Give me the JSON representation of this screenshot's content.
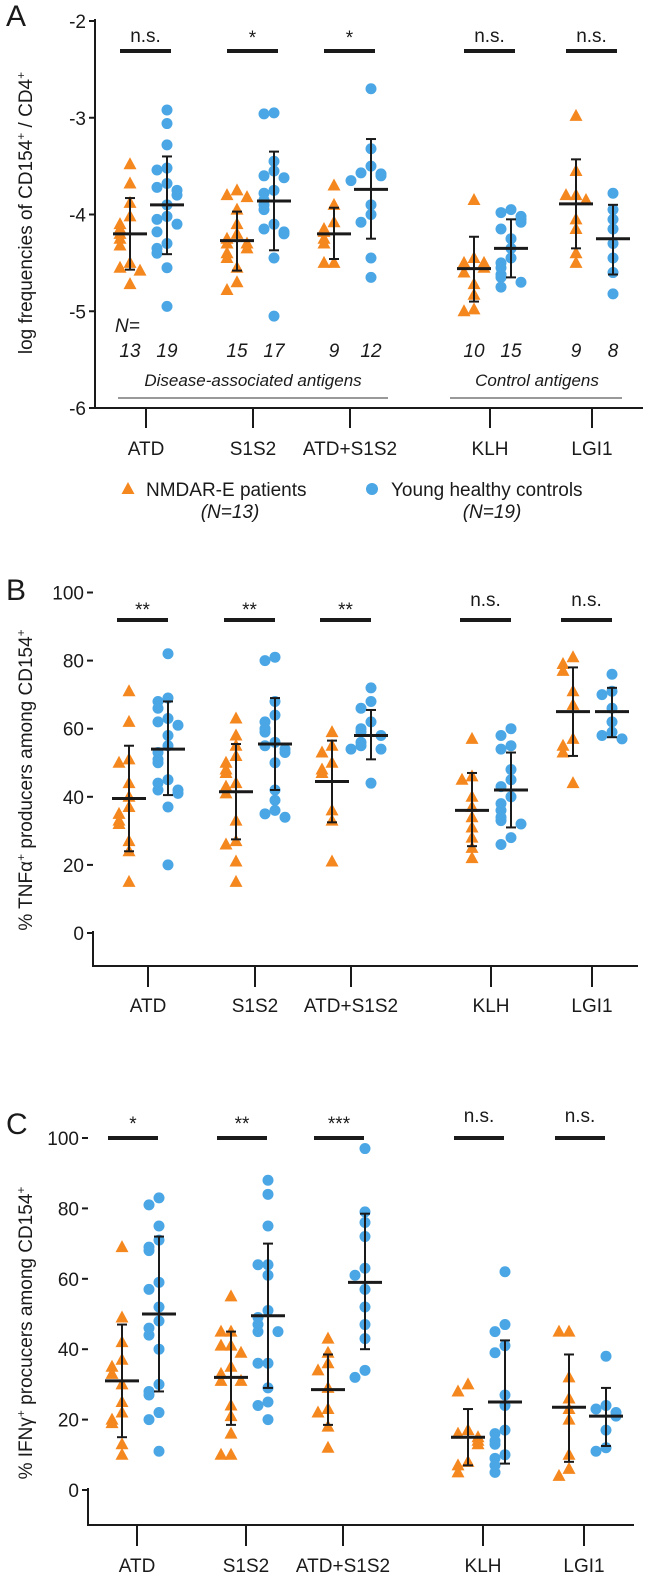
{
  "colors": {
    "patients": "#f5871f",
    "controls": "#4aa6e4",
    "axis": "#1a1a1a"
  },
  "legend": {
    "patients_label": "NMDAR-E patients",
    "patients_n": "(N=13)",
    "controls_label": "Young healthy controls",
    "controls_n": "(N=19)"
  },
  "chart_data": [
    {
      "type": "scatter",
      "panel": "A",
      "ylabel_parts": [
        "log frequencies of CD154",
        "+",
        " / CD4",
        "+"
      ],
      "ylim": [
        -6,
        -2
      ],
      "yticks": [
        -2,
        -3,
        -4,
        -5,
        -6
      ],
      "ytick_labels": [
        "-2",
        "-3",
        "-4",
        "-5",
        "-6"
      ],
      "categories": [
        "ATD",
        "S1S2",
        "ATD+S1S2",
        "KLH",
        "LGI1"
      ],
      "significance": [
        "n.s.",
        "*",
        "*",
        "n.s.",
        "n.s."
      ],
      "n_prefix": "N=",
      "n_counts": [
        [
          "13",
          "19"
        ],
        [
          "15",
          "17"
        ],
        [
          "9",
          "12"
        ],
        [
          "10",
          "15"
        ],
        [
          "9",
          "8"
        ]
      ],
      "group_labels": [
        "Disease-associated antigens",
        "Control antigens"
      ],
      "series": [
        {
          "name": "NMDAR-E patients",
          "values": [
            [
              -3.48,
              -3.68,
              -3.88,
              -4.02,
              -4.1,
              -4.15,
              -4.2,
              -4.25,
              -4.32,
              -4.5,
              -4.55,
              -4.58,
              -4.72
            ],
            [
              -3.75,
              -3.8,
              -3.82,
              -3.95,
              -4.1,
              -4.2,
              -4.25,
              -4.3,
              -4.3,
              -4.35,
              -4.4,
              -4.45,
              -4.55,
              -4.7,
              -4.78
            ],
            [
              -3.7,
              -3.9,
              -4.08,
              -4.15,
              -4.18,
              -4.25,
              -4.3,
              -4.5,
              -4.5
            ],
            [
              -3.85,
              -4.45,
              -4.5,
              -4.5,
              -4.55,
              -4.6,
              -4.72,
              -4.83,
              -4.98,
              -5.0
            ],
            [
              -2.98,
              -3.55,
              -3.8,
              -3.8,
              -3.85,
              -4.05,
              -4.15,
              -4.4,
              -4.5
            ]
          ],
          "means": [
            -4.2,
            -4.27,
            -4.2,
            -4.56,
            -3.89
          ],
          "err_low": [
            -4.57,
            -4.58,
            -4.46,
            -4.9,
            -4.35
          ],
          "err_high": [
            -3.83,
            -3.97,
            -3.93,
            -4.23,
            -3.43
          ]
        },
        {
          "name": "Young healthy controls",
          "values": [
            [
              -2.92,
              -3.06,
              -3.28,
              -3.52,
              -3.54,
              -3.68,
              -3.72,
              -3.75,
              -3.8,
              -3.9,
              -4.02,
              -4.05,
              -4.1,
              -4.18,
              -4.3,
              -4.35,
              -4.4,
              -4.55,
              -4.95
            ],
            [
              -2.95,
              -2.96,
              -3.45,
              -3.55,
              -3.6,
              -3.62,
              -3.75,
              -3.78,
              -3.85,
              -3.9,
              -3.95,
              -4.1,
              -4.15,
              -4.18,
              -4.2,
              -4.45,
              -5.05
            ],
            [
              -2.7,
              -3.32,
              -3.5,
              -3.57,
              -3.58,
              -3.6,
              -3.65,
              -3.9,
              -4.0,
              -4.08,
              -4.45,
              -4.65
            ],
            [
              -3.95,
              -3.98,
              -4.02,
              -4.05,
              -4.08,
              -4.15,
              -4.25,
              -4.35,
              -4.45,
              -4.5,
              -4.55,
              -4.62,
              -4.65,
              -4.7,
              -4.75
            ],
            [
              -3.78,
              -3.95,
              -4.05,
              -4.15,
              -4.3,
              -4.45,
              -4.6,
              -4.82
            ]
          ],
          "means": [
            -3.9,
            -3.86,
            -3.74,
            -4.35,
            -4.25
          ],
          "err_low": [
            -4.41,
            -4.37,
            -4.25,
            -4.65,
            -4.62
          ],
          "err_high": [
            -3.4,
            -3.35,
            -3.22,
            -4.05,
            -3.9
          ]
        }
      ]
    },
    {
      "type": "scatter",
      "panel": "B",
      "ylabel_parts": [
        "% TNFα",
        "+",
        " producers among CD154",
        "+"
      ],
      "ylim": [
        -10,
        100
      ],
      "yticks": [
        0,
        20,
        40,
        60,
        80,
        100
      ],
      "ytick_labels": [
        "0",
        "20",
        "40",
        "60",
        "80",
        "100"
      ],
      "categories": [
        "ATD",
        "S1S2",
        "ATD+S1S2",
        "KLH",
        "LGI1"
      ],
      "significance": [
        "**",
        "**",
        "**",
        "n.s.",
        "n.s."
      ],
      "series": [
        {
          "name": "NMDAR-E patients",
          "values": [
            [
              71,
              62,
              51,
              50,
              44,
              40,
              37,
              35,
              33,
              32,
              27,
              24,
              15
            ],
            [
              63,
              58,
              55,
              52,
              50,
              48,
              47,
              44,
              43,
              41,
              33,
              27,
              26,
              21,
              15
            ],
            [
              59,
              55,
              53,
              50,
              48,
              47,
              36,
              33,
              21
            ],
            [
              57,
              46,
              45,
              40,
              37,
              34,
              31,
              28,
              25,
              22
            ],
            [
              81,
              79,
              77,
              71,
              67,
              57,
              55,
              53,
              44
            ]
          ],
          "means": [
            39.5,
            41.5,
            44.5,
            36,
            65
          ],
          "err_low": [
            24,
            27.5,
            32.5,
            25.5,
            52
          ],
          "err_high": [
            55,
            55.5,
            56.5,
            47,
            78
          ]
        },
        {
          "name": "Young healthy controls",
          "values": [
            [
              82,
              69,
              68,
              66,
              63,
              62,
              61,
              58,
              55,
              53,
              51,
              50,
              45,
              44,
              42,
              42,
              41,
              37,
              20
            ],
            [
              81,
              80,
              68,
              64,
              62,
              60,
              59,
              56,
              55,
              54,
              53,
              50,
              42,
              39,
              36,
              35,
              34
            ],
            [
              72,
              68,
              66,
              62,
              60,
              59,
              58,
              56,
              55,
              54,
              54,
              44
            ],
            [
              60,
              58,
              55,
              54,
              48,
              45,
              43,
              40,
              38,
              36,
              34,
              33,
              32,
              28,
              26
            ],
            [
              76,
              71,
              70,
              66,
              62,
              59,
              58,
              57
            ]
          ],
          "means": [
            54,
            55.5,
            58,
            42,
            65
          ],
          "err_low": [
            40.5,
            42,
            51,
            31,
            57.5
          ],
          "err_high": [
            68,
            69,
            65.5,
            53,
            72
          ]
        }
      ]
    },
    {
      "type": "scatter",
      "panel": "C",
      "ylabel_parts": [
        "% IFNγ",
        "+",
        " procucers among CD154",
        "+"
      ],
      "ylim": [
        -10,
        100
      ],
      "yticks": [
        0,
        20,
        40,
        60,
        80,
        100
      ],
      "ytick_labels": [
        "0",
        "20",
        "40",
        "60",
        "80",
        "100"
      ],
      "categories": [
        "ATD",
        "S1S2",
        "ATD+S1S2",
        "KLH",
        "LGI1"
      ],
      "significance": [
        "*",
        "**",
        "***",
        "n.s.",
        "n.s."
      ],
      "series": [
        {
          "name": "NMDAR-E patients",
          "values": [
            [
              69,
              49,
              42,
              37,
              35,
              33,
              30,
              25,
              22,
              20,
              19,
              13,
              10
            ],
            [
              55,
              45,
              45,
              41,
              41,
              39,
              35,
              33,
              31,
              31,
              24,
              21,
              16,
              10,
              10
            ],
            [
              43,
              39,
              36,
              34,
              29,
              23,
              22,
              18,
              12
            ],
            [
              30,
              28,
              17,
              16,
              15,
              14,
              13,
              8,
              7,
              5
            ],
            [
              45,
              45,
              32,
              26,
              23,
              20,
              10,
              6,
              4
            ]
          ],
          "means": [
            31,
            32,
            28.5,
            15,
            23.5
          ],
          "err_low": [
            15,
            18.5,
            18.5,
            7,
            8
          ],
          "err_high": [
            47,
            45,
            38.5,
            23,
            38.5
          ]
        },
        {
          "name": "Young healthy controls",
          "values": [
            [
              83,
              81,
              75,
              71,
              69,
              68,
              59,
              57,
              52,
              48,
              46,
              44,
              40,
              30,
              28,
              27,
              22,
              20,
              11
            ],
            [
              88,
              84,
              75,
              64,
              64,
              61,
              51,
              49,
              47,
              45,
              45,
              36,
              36,
              29,
              25,
              24,
              20
            ],
            [
              97,
              79,
              76,
              72,
              63,
              61,
              57,
              52,
              47,
              43,
              34,
              32
            ],
            [
              62,
              47,
              45,
              41,
              39,
              27,
              24,
              17,
              16,
              14,
              13,
              10,
              9,
              7,
              5
            ],
            [
              38,
              24,
              23,
              22,
              21,
              17,
              12,
              11
            ]
          ],
          "means": [
            50,
            49.5,
            59,
            25,
            21
          ],
          "err_low": [
            28,
            29,
            40,
            7.5,
            12.5
          ],
          "err_high": [
            72,
            70,
            78.5,
            42.5,
            29
          ]
        }
      ]
    }
  ]
}
